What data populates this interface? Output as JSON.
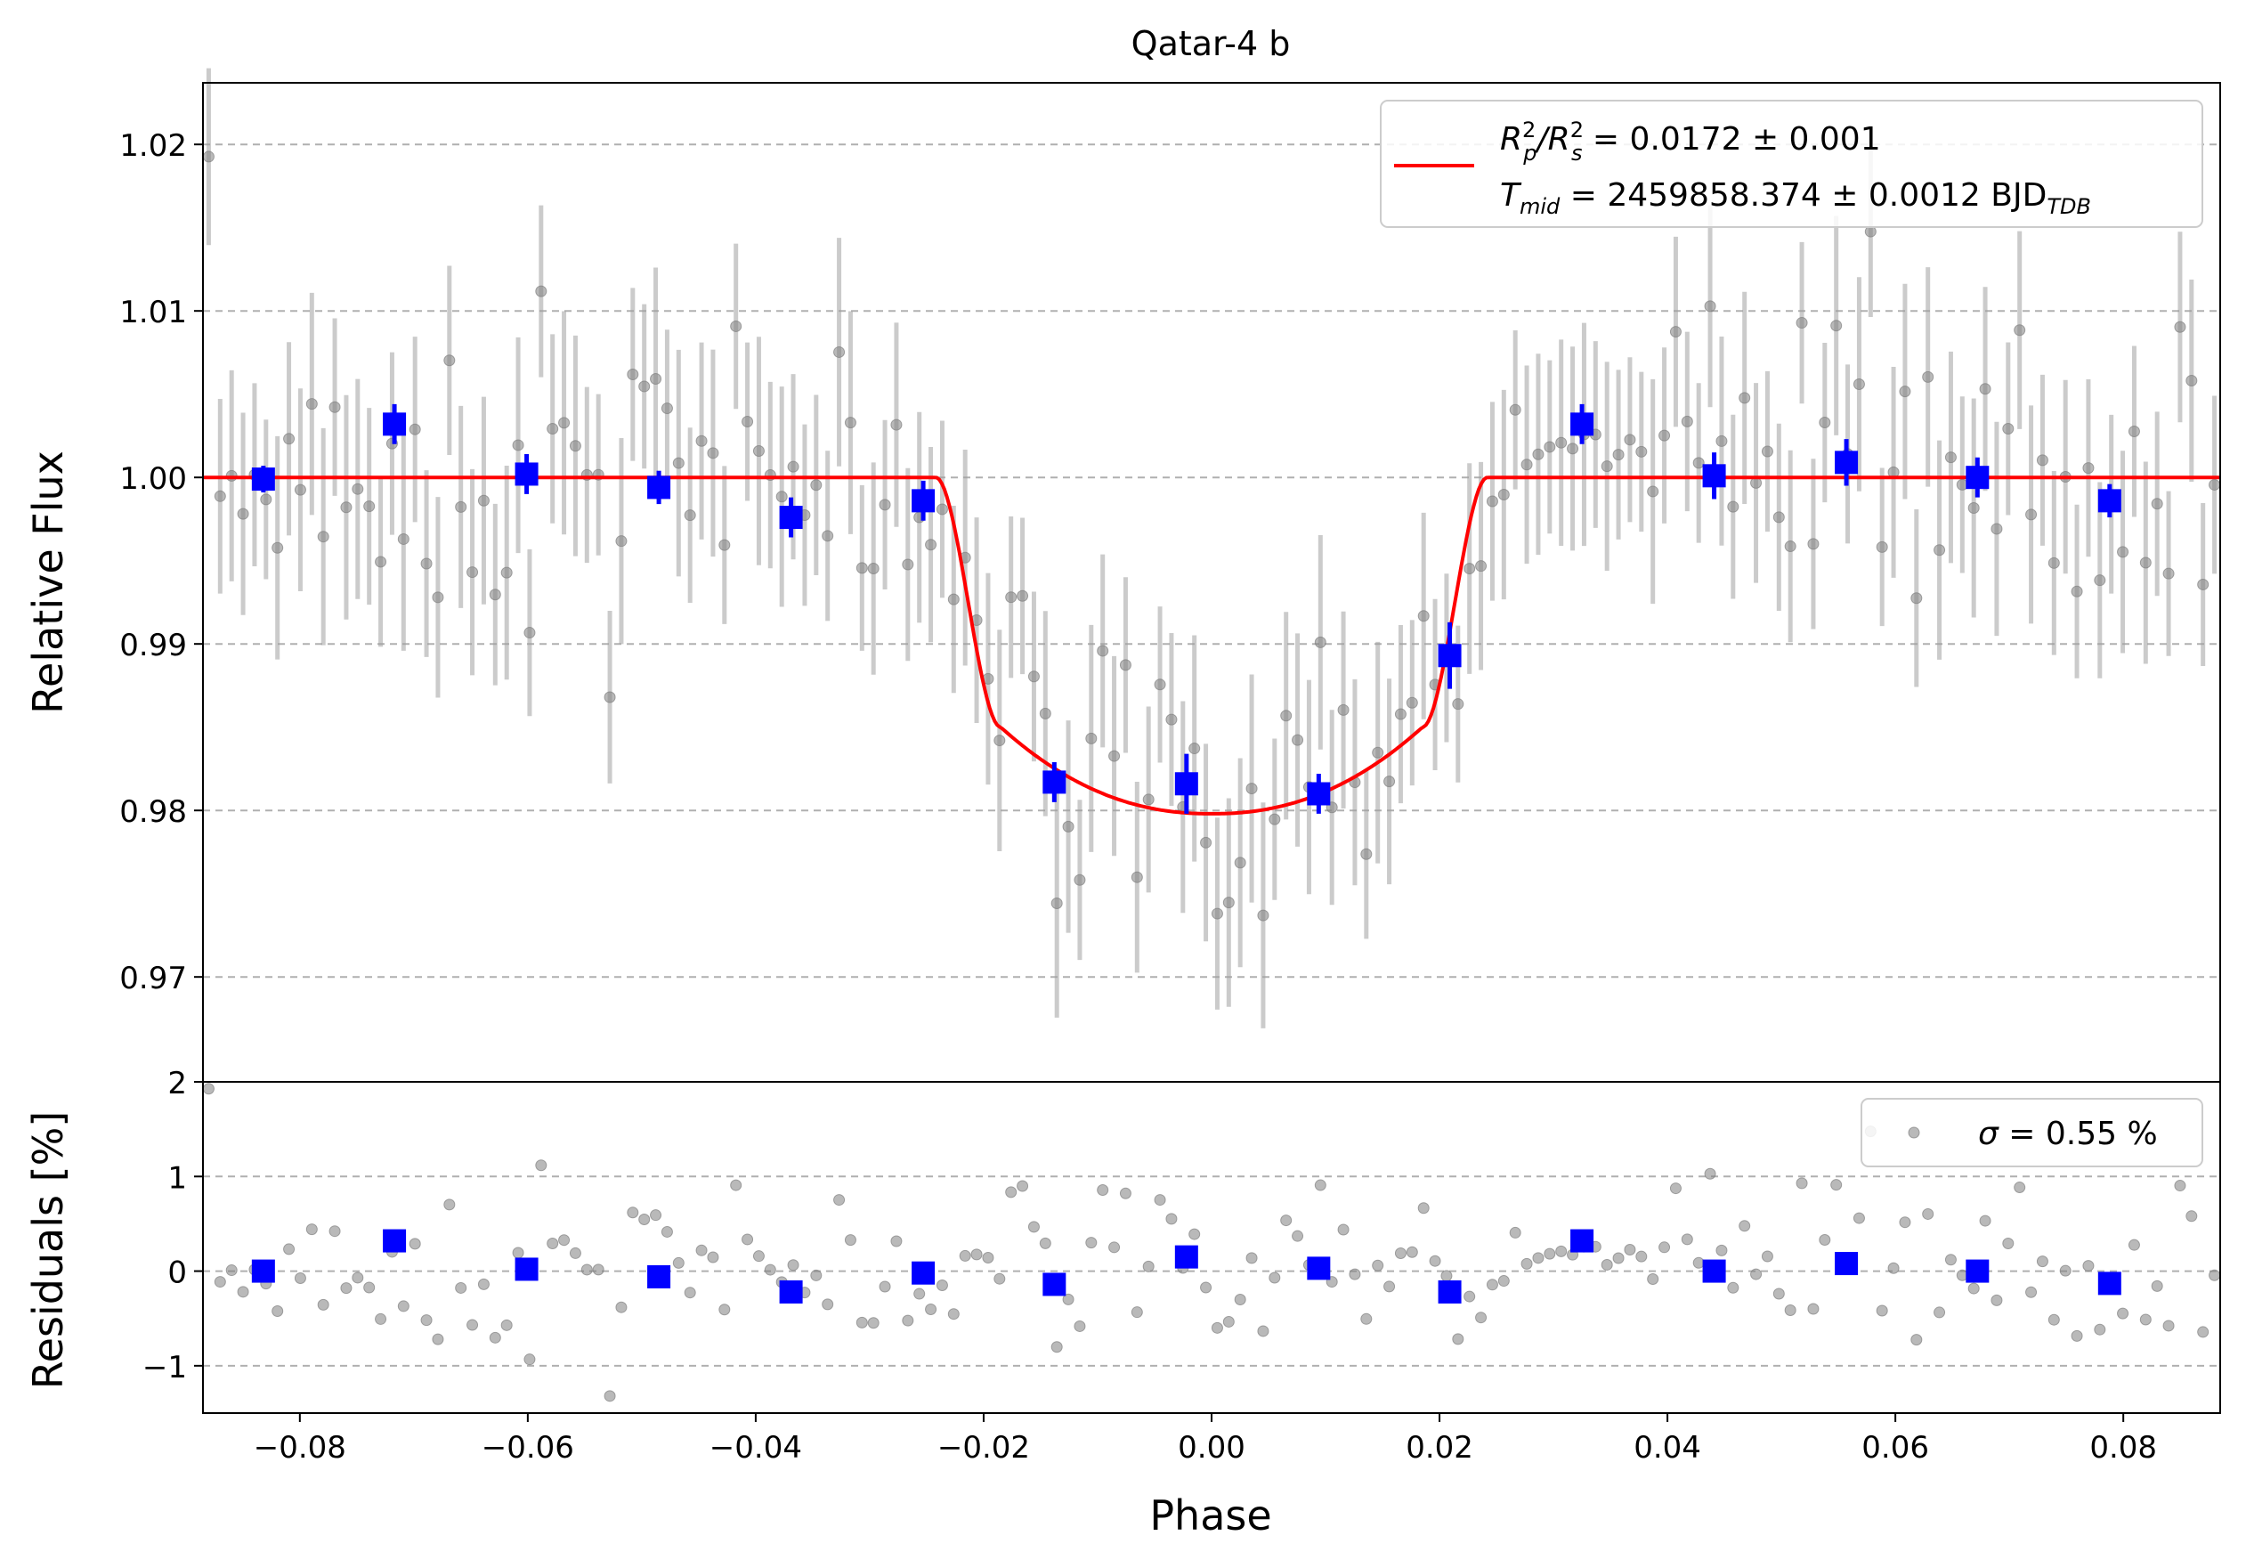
{
  "chart_data": [
    {
      "type": "scatter",
      "panel": "top",
      "title": "Qatar-4 b",
      "xlabel": "",
      "ylabel": "Relative Flux",
      "xlim": [
        -0.0885,
        0.0885
      ],
      "ylim": [
        0.9637,
        1.0237
      ],
      "yticks": [
        "1.02",
        "1.01",
        "1.00",
        "0.99",
        "0.98",
        "0.97"
      ],
      "ytick_values": [
        1.02,
        1.01,
        1.0,
        0.99,
        0.98,
        0.97
      ],
      "grid": "horizontal dashed",
      "legend": {
        "placement": "top-right",
        "line1_main": "R",
        "line1_sub_p": "p",
        "line1_sup": "2",
        "line1_mid": "/R",
        "line1_sub_s": "s",
        "line1_sup2": "2",
        "line1_value": " = 0.0172 ± 0.001",
        "line2_main": "T",
        "line2_sub": "mid",
        "line2_value": " = 2459858.374 ± 0.0012 BJD",
        "line2_unit_sub": "TDB"
      },
      "model": {
        "color": "#ff0000",
        "baseline": 1.0,
        "depth": 0.0202,
        "t_ingress_start": -0.0242,
        "t_ingress_end": -0.0185,
        "t_egress_start": 0.0185,
        "t_egress_end": 0.0242,
        "ingress_break_flux": 0.985
      },
      "binned_series": {
        "color": "#0000ff",
        "x": [
          -0.0832,
          -0.0717,
          -0.0601,
          -0.0485,
          -0.0369,
          -0.0253,
          -0.0138,
          -0.0022,
          0.0094,
          0.0209,
          0.0325,
          0.0441,
          0.0557,
          0.0672,
          0.0788
        ],
        "y": [
          0.9999,
          1.0032,
          1.0002,
          0.9994,
          0.9976,
          0.9986,
          0.9817,
          0.9816,
          0.981,
          0.9893,
          1.0032,
          1.0001,
          1.0009,
          1.0,
          0.9986
        ],
        "err": [
          0.0008,
          0.0012,
          0.0012,
          0.001,
          0.0012,
          0.0012,
          0.0012,
          0.0018,
          0.0012,
          0.002,
          0.0012,
          0.0014,
          0.0014,
          0.0012,
          0.001
        ]
      },
      "raw_series": {
        "color": "#808080",
        "n": 176,
        "x_range": [
          -0.0885,
          0.0885
        ],
        "scatter_sigma": 0.0055,
        "typical_err": 0.0055
      }
    },
    {
      "type": "scatter",
      "panel": "bottom",
      "xlabel": "Phase",
      "ylabel": "Residuals [%]",
      "xlim": [
        -0.0885,
        0.0885
      ],
      "ylim": [
        -1.5,
        2.0
      ],
      "xticks": [
        "−0.08",
        "−0.06",
        "−0.04",
        "−0.02",
        "0.00",
        "0.02",
        "0.04",
        "0.06",
        "0.08"
      ],
      "xtick_values": [
        -0.08,
        -0.06,
        -0.04,
        -0.02,
        0.0,
        0.02,
        0.04,
        0.06,
        0.08
      ],
      "yticks": [
        "2",
        "1",
        "0",
        "−1"
      ],
      "ytick_values": [
        2,
        1,
        0,
        -1
      ],
      "grid": "horizontal dashed",
      "legend": {
        "placement": "top-right",
        "label_symbol": "σ",
        "label_value": " = 0.55 %"
      },
      "binned_series": {
        "color": "#0000ff",
        "x": [
          -0.0832,
          -0.0717,
          -0.0601,
          -0.0485,
          -0.0369,
          -0.0253,
          -0.0138,
          -0.0022,
          0.0094,
          0.0209,
          0.0325,
          0.0441,
          0.0557,
          0.0672,
          0.0788
        ],
        "y": [
          0.0,
          0.32,
          0.02,
          -0.06,
          -0.22,
          -0.02,
          -0.14,
          0.15,
          0.03,
          -0.22,
          0.32,
          0.0,
          0.08,
          0.0,
          -0.13
        ]
      },
      "raw_series": {
        "color": "#808080",
        "sigma_percent": 0.55
      }
    }
  ]
}
